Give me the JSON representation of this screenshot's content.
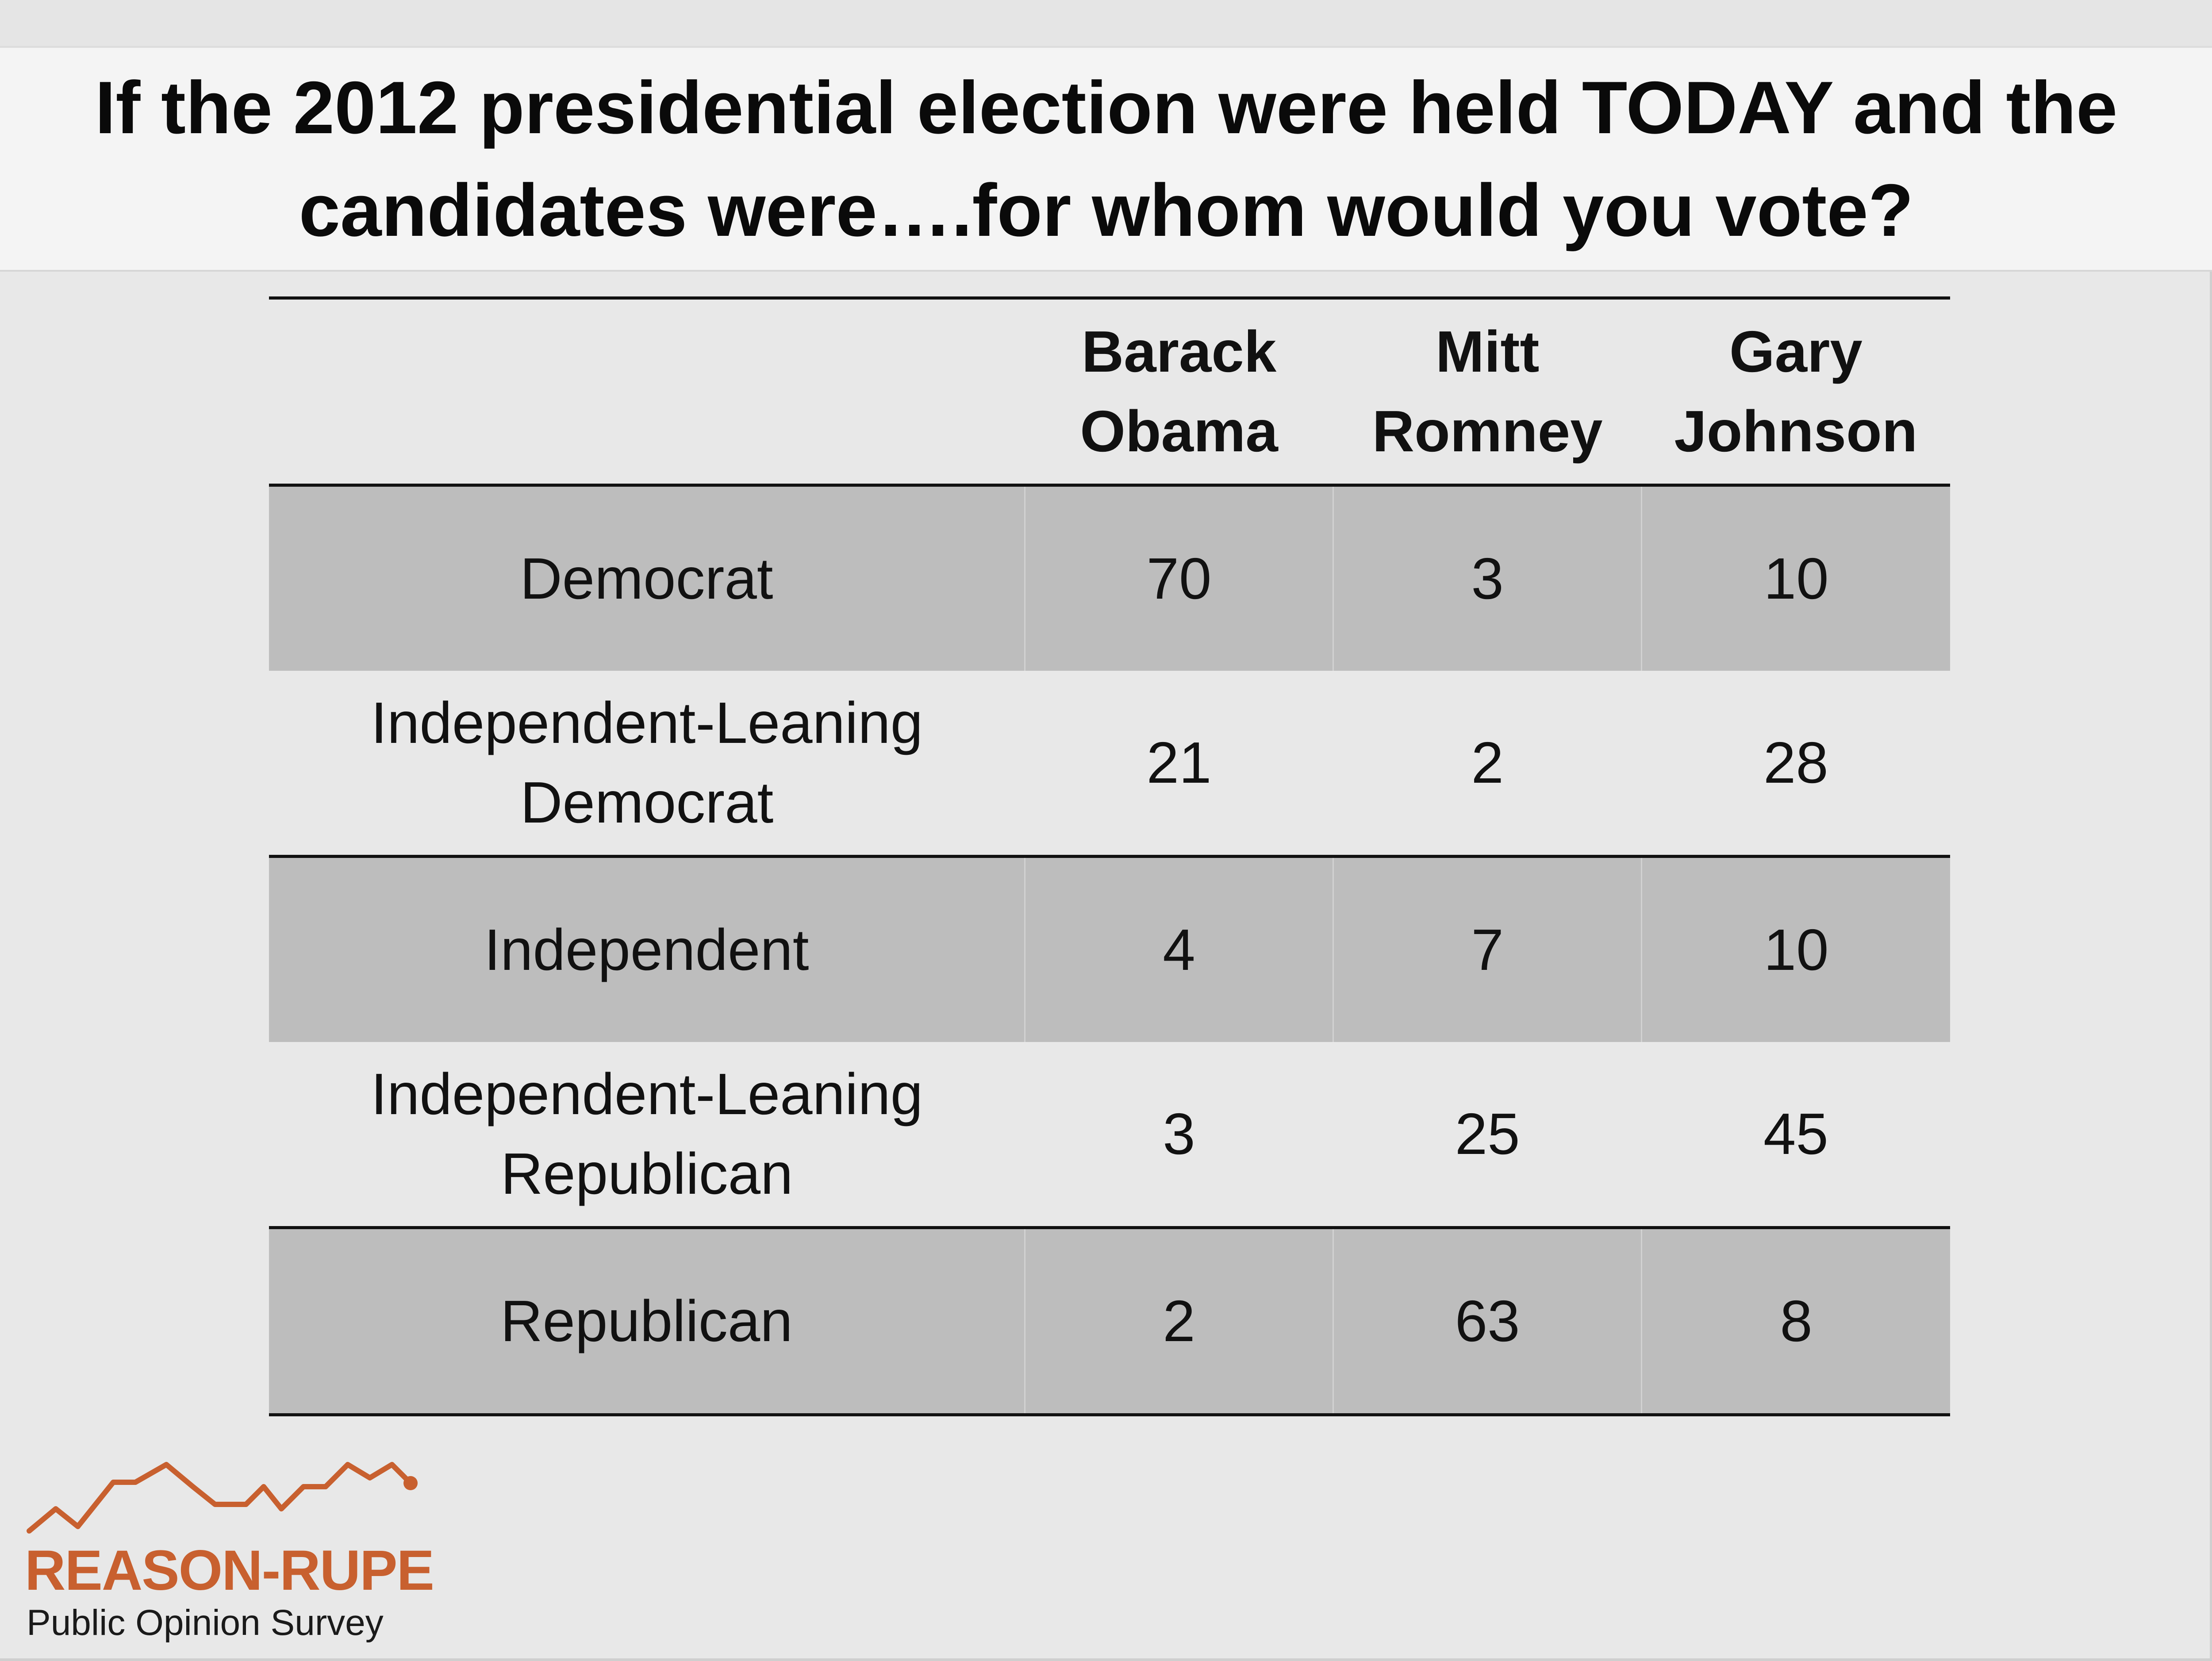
{
  "title": "If the 2012 presidential election were held TODAY and the candidates were….for whom would you vote?",
  "chart_data": {
    "type": "table",
    "columns": [
      {
        "line1": "Barack",
        "line2": "Obama"
      },
      {
        "line1": "Mitt",
        "line2": "Romney"
      },
      {
        "line1": "Gary",
        "line2": "Johnson"
      }
    ],
    "rows": [
      {
        "line1": "Democrat",
        "line2": "",
        "values": [
          "70",
          "3",
          "10"
        ]
      },
      {
        "line1": "Independent-Leaning",
        "line2": "Democrat",
        "values": [
          "21",
          "2",
          "28"
        ]
      },
      {
        "line1": "Independent",
        "line2": "",
        "values": [
          "4",
          "7",
          "10"
        ]
      },
      {
        "line1": "Independent-Leaning",
        "line2": "Republican",
        "values": [
          "3",
          "25",
          "45"
        ]
      },
      {
        "line1": "Republican",
        "line2": "",
        "values": [
          "2",
          "63",
          "8"
        ]
      }
    ]
  },
  "logo": {
    "name": "REASON-RUPE",
    "subtitle": "Public Opinion Survey",
    "color": "#c8602f"
  },
  "colors": {
    "background": "#e8e8e8",
    "title_band": "#f4f4f4",
    "shaded_row": "#bdbdbd"
  }
}
